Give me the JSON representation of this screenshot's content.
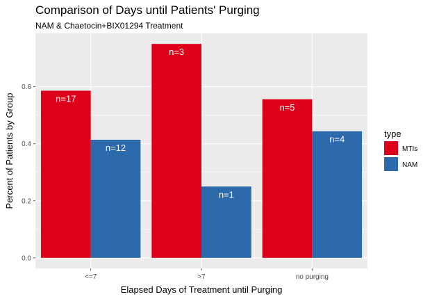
{
  "chart_data": {
    "type": "bar",
    "title": "Comparison of Days until Patients' Purging",
    "subtitle": "NAM & Chaetocin+BIX01294 Treatment",
    "xlabel": "Elapsed Days of Treatment until Purging",
    "ylabel": "Percent of Patients by Group",
    "categories": [
      "<=7",
      ">7",
      "no purging"
    ],
    "ylim": [
      -0.037,
      0.787
    ],
    "yticks": [
      0.0,
      0.2,
      0.4,
      0.6
    ],
    "ytick_labels": [
      "0.0",
      "0.2",
      "0.4",
      "0.6"
    ],
    "grid": true,
    "legend": {
      "title": "type",
      "position": "right"
    },
    "series": [
      {
        "name": "MTIs",
        "color": "#de0018",
        "values": [
          0.586,
          0.75,
          0.556
        ],
        "labels": [
          "n=17",
          "n=3",
          "n=5"
        ]
      },
      {
        "name": "NAM",
        "color": "#2c6aab",
        "values": [
          0.414,
          0.25,
          0.444
        ],
        "labels": [
          "n=12",
          "n=1",
          "n=4"
        ]
      }
    ]
  }
}
